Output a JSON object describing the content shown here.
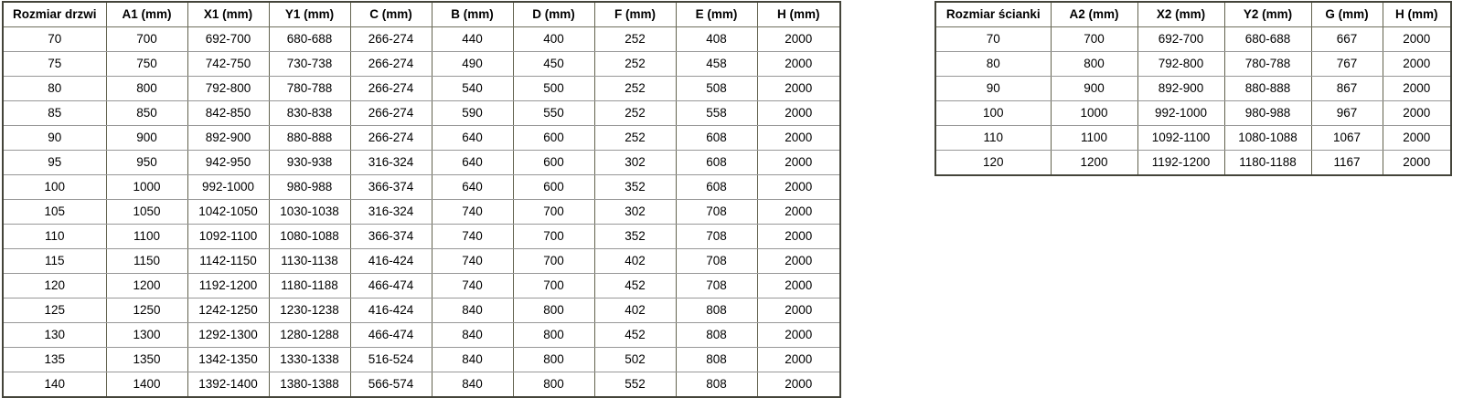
{
  "colors": {
    "background": "#ffffff",
    "text": "#000000",
    "border_outer": "#44443a",
    "border_vertical": "#62624e",
    "border_horizontal": "#979797"
  },
  "tables": {
    "door": {
      "name": "door-size-table",
      "headers": [
        "Rozmiar drzwi",
        "A1 (mm)",
        "X1 (mm)",
        "Y1 (mm)",
        "C (mm)",
        "B (mm)",
        "D (mm)",
        "F (mm)",
        "E (mm)",
        "H (mm)"
      ],
      "rows": [
        [
          "70",
          "700",
          "692-700",
          "680-688",
          "266-274",
          "440",
          "400",
          "252",
          "408",
          "2000"
        ],
        [
          "75",
          "750",
          "742-750",
          "730-738",
          "266-274",
          "490",
          "450",
          "252",
          "458",
          "2000"
        ],
        [
          "80",
          "800",
          "792-800",
          "780-788",
          "266-274",
          "540",
          "500",
          "252",
          "508",
          "2000"
        ],
        [
          "85",
          "850",
          "842-850",
          "830-838",
          "266-274",
          "590",
          "550",
          "252",
          "558",
          "2000"
        ],
        [
          "90",
          "900",
          "892-900",
          "880-888",
          "266-274",
          "640",
          "600",
          "252",
          "608",
          "2000"
        ],
        [
          "95",
          "950",
          "942-950",
          "930-938",
          "316-324",
          "640",
          "600",
          "302",
          "608",
          "2000"
        ],
        [
          "100",
          "1000",
          "992-1000",
          "980-988",
          "366-374",
          "640",
          "600",
          "352",
          "608",
          "2000"
        ],
        [
          "105",
          "1050",
          "1042-1050",
          "1030-1038",
          "316-324",
          "740",
          "700",
          "302",
          "708",
          "2000"
        ],
        [
          "110",
          "1100",
          "1092-1100",
          "1080-1088",
          "366-374",
          "740",
          "700",
          "352",
          "708",
          "2000"
        ],
        [
          "115",
          "1150",
          "1142-1150",
          "1130-1138",
          "416-424",
          "740",
          "700",
          "402",
          "708",
          "2000"
        ],
        [
          "120",
          "1200",
          "1192-1200",
          "1180-1188",
          "466-474",
          "740",
          "700",
          "452",
          "708",
          "2000"
        ],
        [
          "125",
          "1250",
          "1242-1250",
          "1230-1238",
          "416-424",
          "840",
          "800",
          "402",
          "808",
          "2000"
        ],
        [
          "130",
          "1300",
          "1292-1300",
          "1280-1288",
          "466-474",
          "840",
          "800",
          "452",
          "808",
          "2000"
        ],
        [
          "135",
          "1350",
          "1342-1350",
          "1330-1338",
          "516-524",
          "840",
          "800",
          "502",
          "808",
          "2000"
        ],
        [
          "140",
          "1400",
          "1392-1400",
          "1380-1388",
          "566-574",
          "840",
          "800",
          "552",
          "808",
          "2000"
        ]
      ]
    },
    "wall": {
      "name": "wall-size-table",
      "headers": [
        "Rozmiar ścianki",
        "A2 (mm)",
        "X2 (mm)",
        "Y2 (mm)",
        "G (mm)",
        "H (mm)"
      ],
      "rows": [
        [
          "70",
          "700",
          "692-700",
          "680-688",
          "667",
          "2000"
        ],
        [
          "80",
          "800",
          "792-800",
          "780-788",
          "767",
          "2000"
        ],
        [
          "90",
          "900",
          "892-900",
          "880-888",
          "867",
          "2000"
        ],
        [
          "100",
          "1000",
          "992-1000",
          "980-988",
          "967",
          "2000"
        ],
        [
          "110",
          "1100",
          "1092-1100",
          "1080-1088",
          "1067",
          "2000"
        ],
        [
          "120",
          "1200",
          "1192-1200",
          "1180-1188",
          "1167",
          "2000"
        ]
      ]
    }
  }
}
